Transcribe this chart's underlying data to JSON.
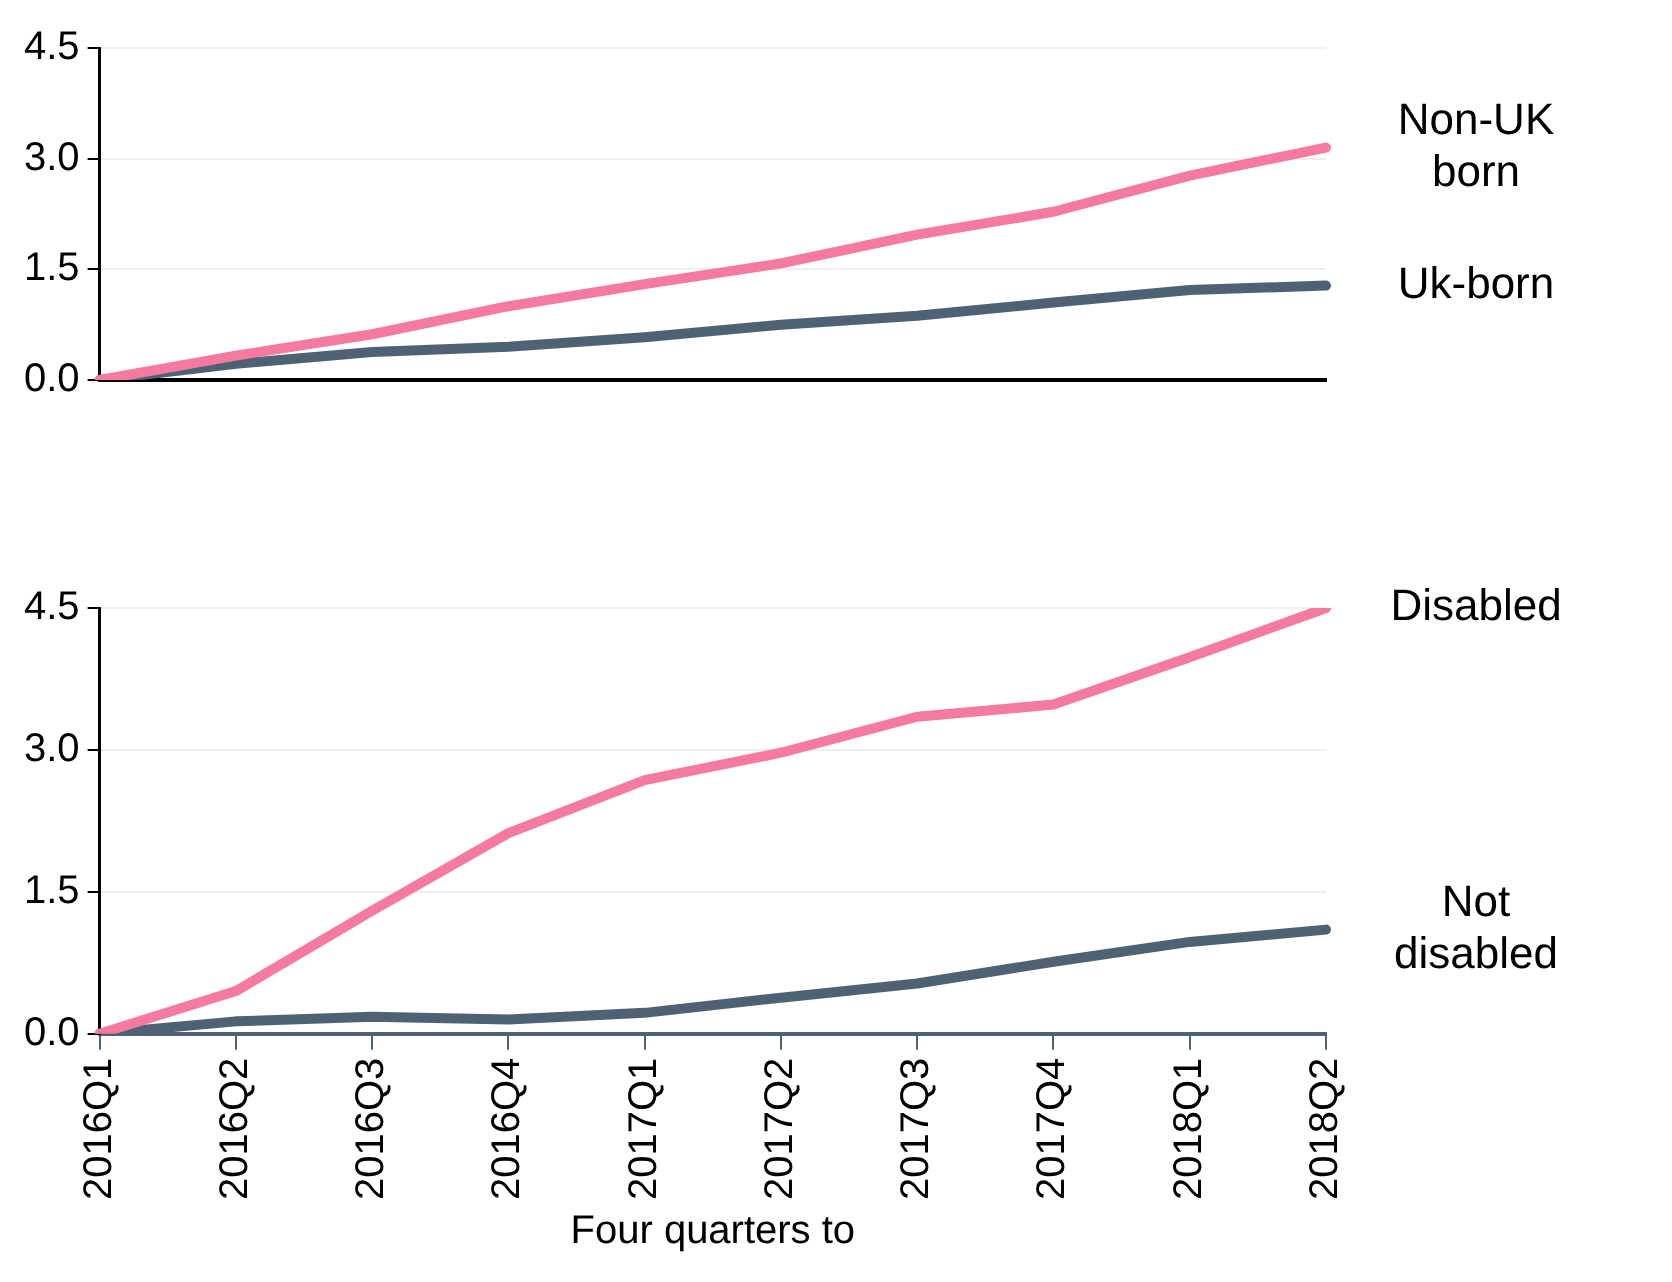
{
  "chart_data": [
    {
      "type": "line",
      "categories": [
        null,
        null,
        null,
        null,
        null,
        null,
        null,
        null,
        null,
        null
      ],
      "series": [
        {
          "name": "Non-UK born",
          "color": "#f47a9f",
          "values": [
            0,
            0.33,
            0.62,
            1.0,
            1.3,
            1.58,
            1.97,
            2.28,
            2.77,
            3.15
          ]
        },
        {
          "name": "Uk-born",
          "color": "#4f6275",
          "values": [
            0,
            0.22,
            0.38,
            0.45,
            0.58,
            0.75,
            0.87,
            1.05,
            1.22,
            1.28
          ]
        }
      ],
      "ylim": [
        0,
        4.5
      ],
      "yticks": [
        {
          "value": 0,
          "label": "0.0"
        },
        {
          "value": 1.5,
          "label": "1.5"
        },
        {
          "value": 3,
          "label": "3.0"
        },
        {
          "value": 4.5,
          "label": "4.5"
        }
      ],
      "grid": "y",
      "legend": false,
      "marker": "none",
      "tick_labels": "y"
    },
    {
      "type": "line",
      "categories": [
        "2016Q1",
        "2016Q2",
        "2016Q3",
        "2016Q4",
        "2017Q1",
        "2017Q2",
        "2017Q3",
        "2017Q4",
        "2018Q1",
        "2018Q2"
      ],
      "xlabel": "Four quarters to",
      "series": [
        {
          "name": "Disabled",
          "color": "#f47a9f",
          "values": [
            0,
            0.45,
            1.3,
            2.12,
            2.68,
            2.97,
            3.35,
            3.48,
            3.98,
            4.5
          ]
        },
        {
          "name": "Not disabled",
          "color": "#4f6275",
          "values": [
            0,
            0.13,
            0.18,
            0.15,
            0.22,
            0.38,
            0.53,
            0.76,
            0.97,
            1.1
          ]
        }
      ],
      "ylim": [
        0,
        4.5
      ],
      "yticks": [
        {
          "value": 0,
          "label": "0.0"
        },
        {
          "value": 1.5,
          "label": "1.5"
        },
        {
          "value": 3,
          "label": "3.0"
        },
        {
          "value": 4.5,
          "label": "4.5"
        }
      ],
      "grid": "y",
      "legend": false,
      "marker": "none"
    }
  ]
}
